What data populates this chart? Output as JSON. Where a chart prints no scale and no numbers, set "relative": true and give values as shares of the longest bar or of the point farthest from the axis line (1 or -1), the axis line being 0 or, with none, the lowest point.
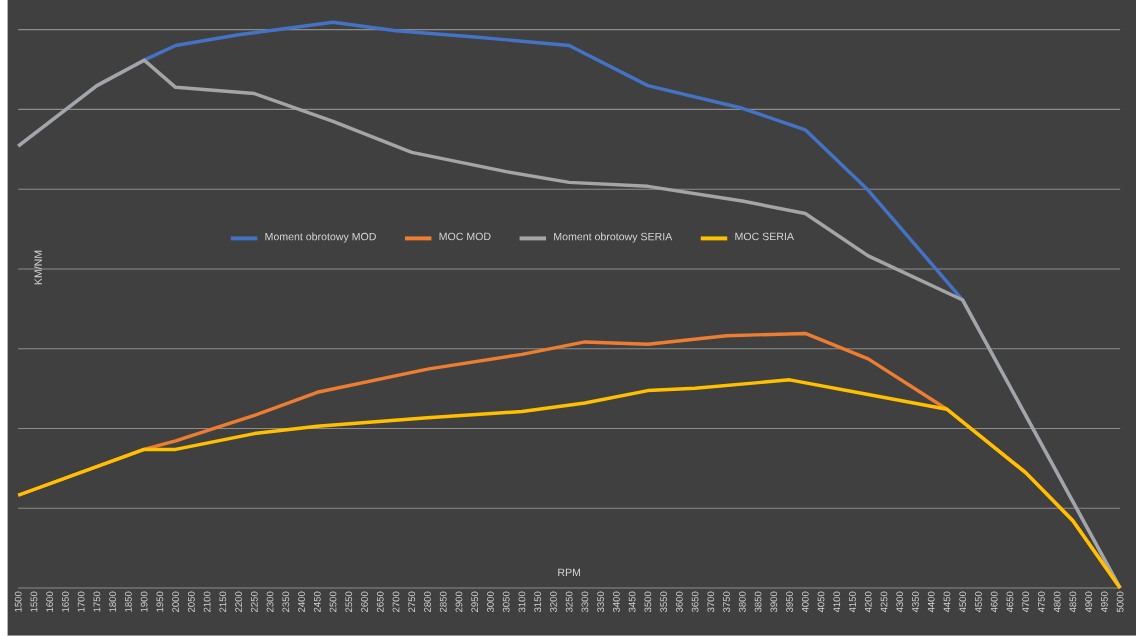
{
  "chart_data": {
    "type": "line",
    "relative": true,
    "xlabel": "RPM",
    "ylabel": "KM/NM",
    "xlim": [
      1500,
      5000
    ],
    "xticks": [
      1500,
      1550,
      1600,
      1650,
      1700,
      1750,
      1800,
      1850,
      1900,
      1950,
      2000,
      2050,
      2100,
      2150,
      2200,
      2250,
      2300,
      2350,
      2400,
      2450,
      2500,
      2550,
      2600,
      2650,
      2700,
      2750,
      2800,
      2850,
      2900,
      2950,
      3000,
      3050,
      3100,
      3150,
      3200,
      3250,
      3300,
      3350,
      3400,
      3450,
      3500,
      3550,
      3600,
      3650,
      3700,
      3750,
      3800,
      3850,
      3900,
      3950,
      4000,
      4050,
      4100,
      4150,
      4200,
      4250,
      4300,
      4350,
      4400,
      4450,
      4500,
      4550,
      4600,
      4650,
      4700,
      4750,
      4800,
      4850,
      4900,
      4950,
      5000
    ],
    "grid": "y",
    "legend": "center",
    "line_style": "solid",
    "marker": "none",
    "series": [
      {
        "name": "Moment obrotowy MOD",
        "color": "#4472c4",
        "x": [
          1500,
          1750,
          1900,
          2000,
          2200,
          2500,
          2700,
          2950,
          3250,
          3500,
          3800,
          4000,
          4200,
          4500,
          5000
        ],
        "values": [
          0.781,
          0.888,
          0.933,
          0.959,
          0.978,
          1.0,
          0.985,
          0.974,
          0.959,
          0.888,
          0.848,
          0.81,
          0.703,
          0.509,
          0
        ]
      },
      {
        "name": "MOC MOD",
        "color": "#ed7d31",
        "x": [
          1500,
          1900,
          2000,
          2250,
          2450,
          2800,
          3100,
          3300,
          3500,
          3750,
          4000,
          4200,
          4450,
          4700,
          4850,
          5000
        ],
        "values": [
          0.164,
          0.245,
          0.26,
          0.305,
          0.346,
          0.387,
          0.413,
          0.435,
          0.431,
          0.446,
          0.45,
          0.405,
          0.316,
          0.204,
          0.119,
          0
        ]
      },
      {
        "name": "Moment obrotowy SERIA",
        "color": "#a5a5a5",
        "x": [
          1500,
          1750,
          1900,
          2000,
          2250,
          2500,
          2750,
          3050,
          3250,
          3500,
          3800,
          4000,
          4200,
          4500,
          5000
        ],
        "values": [
          0.781,
          0.888,
          0.933,
          0.885,
          0.874,
          0.825,
          0.77,
          0.736,
          0.717,
          0.71,
          0.684,
          0.662,
          0.587,
          0.509,
          0
        ]
      },
      {
        "name": "MOC SERIA",
        "color": "#ffc000",
        "x": [
          1500,
          1900,
          2000,
          2250,
          2450,
          2800,
          3100,
          3300,
          3500,
          3650,
          3950,
          4200,
          4450,
          4700,
          4850,
          5000
        ],
        "values": [
          0.164,
          0.245,
          0.245,
          0.273,
          0.286,
          0.301,
          0.312,
          0.327,
          0.349,
          0.353,
          0.368,
          0.342,
          0.316,
          0.204,
          0.119,
          0
        ]
      }
    ]
  }
}
